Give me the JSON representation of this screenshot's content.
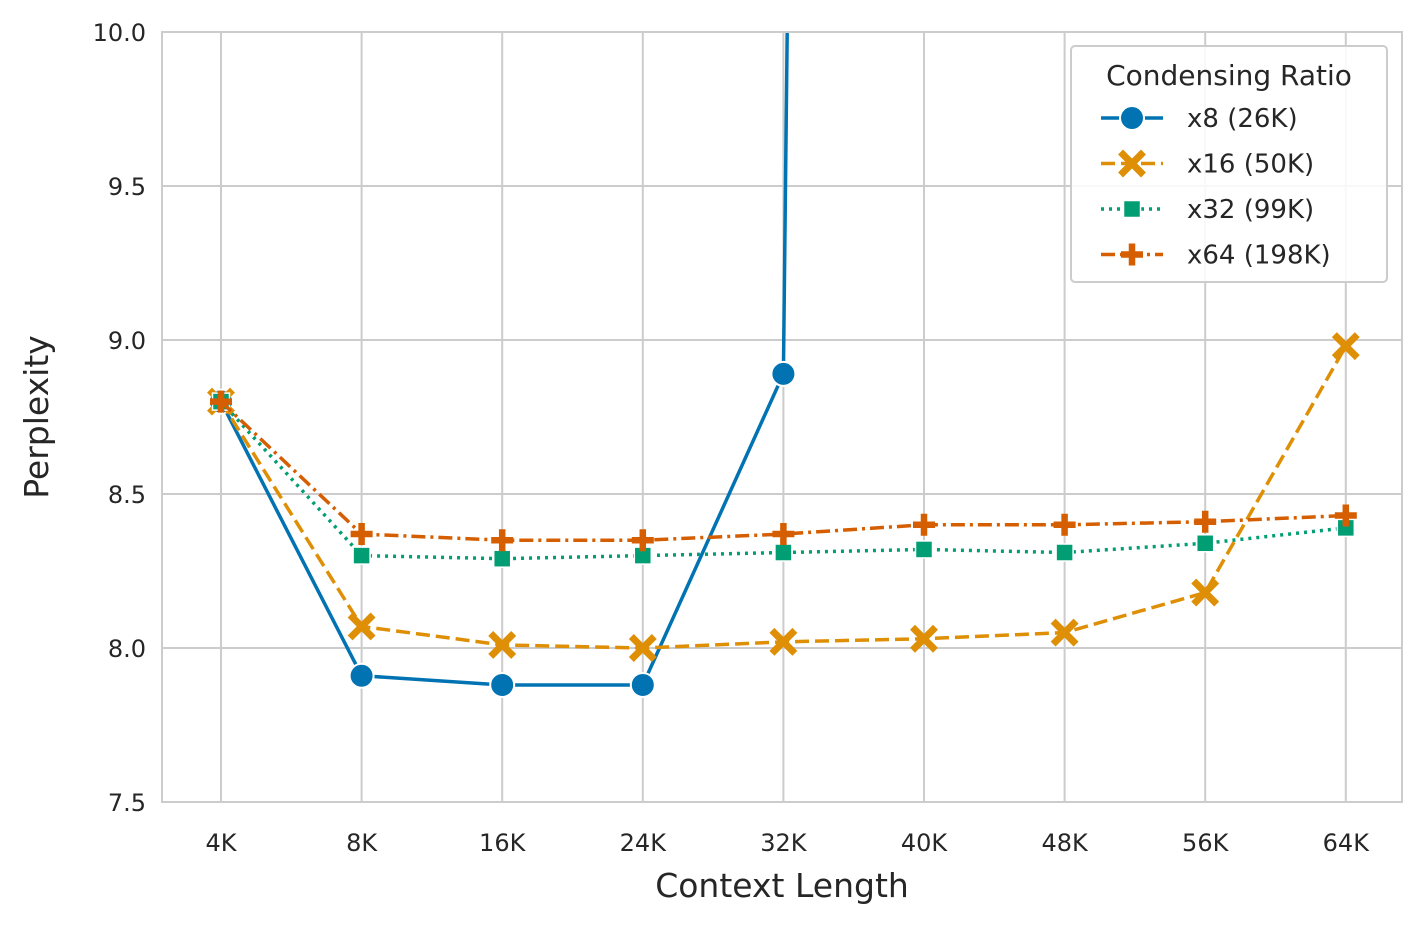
{
  "chart_data": {
    "type": "line",
    "xlabel": "Context Length",
    "ylabel": "Perplexity",
    "ylim": [
      7.5,
      10.0
    ],
    "yticks": [
      "7.5",
      "8.0",
      "8.5",
      "9.0",
      "9.5",
      "10.0"
    ],
    "categories": [
      "4K",
      "8K",
      "16K",
      "24K",
      "32K",
      "40K",
      "48K",
      "56K",
      "64K"
    ],
    "grid": true,
    "legend": {
      "title": "Condensing Ratio",
      "placement": "top-right"
    },
    "series": [
      {
        "name": "x8 (26K)",
        "color": "#0173b2",
        "marker": "circle",
        "dash": "solid",
        "values": [
          8.8,
          7.91,
          7.88,
          7.88,
          8.89,
          null,
          null,
          null,
          null
        ],
        "offscale_after": true
      },
      {
        "name": "x16 (50K)",
        "color": "#de8f05",
        "marker": "x",
        "dash": "dashed",
        "values": [
          8.8,
          8.07,
          8.01,
          8.0,
          8.02,
          8.03,
          8.05,
          8.18,
          8.98
        ]
      },
      {
        "name": "x32 (99K)",
        "color": "#029e73",
        "marker": "square",
        "dash": "dotted",
        "values": [
          8.8,
          8.3,
          8.29,
          8.3,
          8.31,
          8.32,
          8.31,
          8.34,
          8.39
        ]
      },
      {
        "name": "x64 (198K)",
        "color": "#d55e00",
        "marker": "plus",
        "dash": "dashdot",
        "values": [
          8.8,
          8.37,
          8.35,
          8.35,
          8.37,
          8.4,
          8.4,
          8.41,
          8.43
        ]
      }
    ]
  }
}
